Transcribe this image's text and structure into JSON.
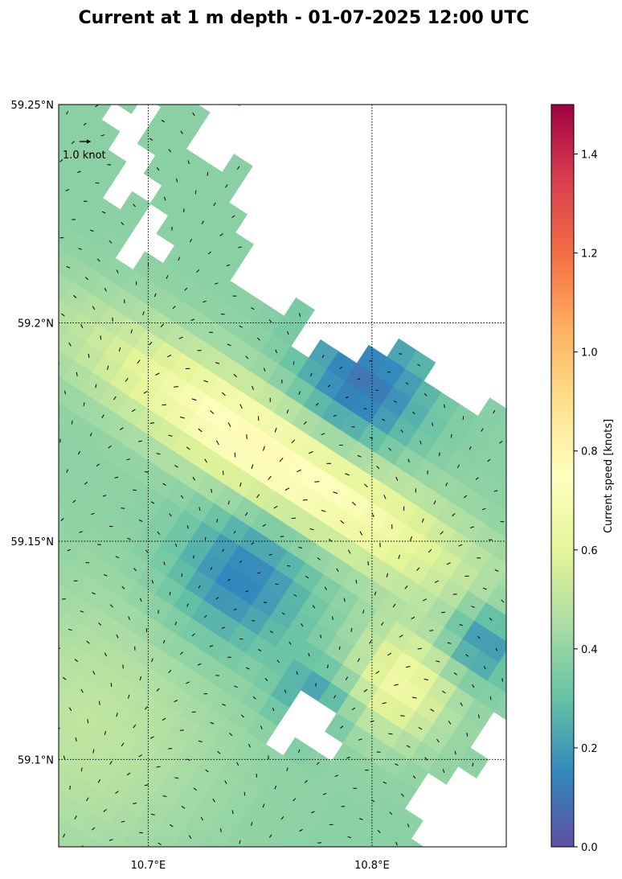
{
  "title": "Current at 1 m depth - 01-07-2025 12:00 UTC",
  "map": {
    "lon_range": [
      10.66,
      10.86
    ],
    "lat_range": [
      59.08,
      59.25
    ],
    "lon_ticks": [
      {
        "value": 10.7,
        "label": "10.7°E"
      },
      {
        "value": 10.8,
        "label": "10.8°E"
      }
    ],
    "lat_ticks": [
      {
        "value": 59.25,
        "label": "59.25°N"
      },
      {
        "value": 59.2,
        "label": "59.2°N"
      },
      {
        "value": 59.15,
        "label": "59.15°N"
      },
      {
        "value": 59.1,
        "label": "59.1°N"
      }
    ],
    "gridlines": "dotted",
    "quiver_key": {
      "label": "1.0 knot",
      "speed": 1.0
    },
    "field_type": "rotated-grid current speed with direction arrows",
    "land_color": "#ffffff"
  },
  "colorbar": {
    "label": "Current speed [knots]",
    "range": [
      0,
      1.5
    ],
    "colormap": "Spectral_r",
    "ticks": [
      {
        "value": 0.0,
        "label": "0.0"
      },
      {
        "value": 0.2,
        "label": "0.2"
      },
      {
        "value": 0.4,
        "label": "0.4"
      },
      {
        "value": 0.6,
        "label": "0.6"
      },
      {
        "value": 0.8,
        "label": "0.8"
      },
      {
        "value": 1.0,
        "label": "1.0"
      },
      {
        "value": 1.2,
        "label": "1.2"
      },
      {
        "value": 1.4,
        "label": "1.4"
      }
    ],
    "stops": [
      "#5e4fa2",
      "#3288bd",
      "#66c2a5",
      "#abdda4",
      "#e6f598",
      "#ffffbf",
      "#fee08b",
      "#fdae61",
      "#f46d43",
      "#d53e4f",
      "#9e0142"
    ]
  }
}
